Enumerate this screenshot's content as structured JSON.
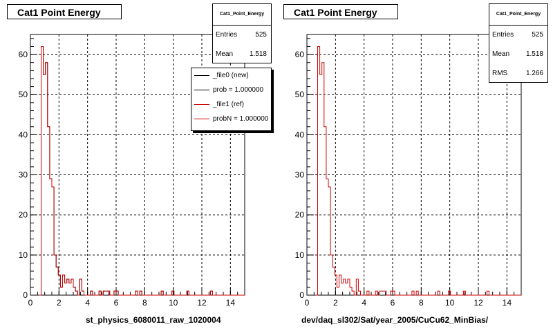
{
  "chart_data": [
    {
      "type": "histogram",
      "title": "Cat1 Point Energy",
      "xlabel": "st_physics_6080011_raw_1020004",
      "xlim": [
        0,
        15
      ],
      "ylim": [
        0,
        65
      ],
      "xticks": [
        "0",
        "2",
        "4",
        "6",
        "8",
        "10",
        "12",
        "14"
      ],
      "yticks": [
        "0",
        "10",
        "20",
        "30",
        "40",
        "50",
        "60"
      ],
      "grid": true,
      "bin_width": 0.15,
      "bin_start": 0.6,
      "series": [
        {
          "name": "_file0 (new)",
          "color": "#000000",
          "values": [
            0,
            62,
            55,
            58,
            42,
            29,
            27,
            10,
            7,
            5,
            2,
            5,
            3,
            4,
            3,
            4,
            2,
            1,
            0,
            4,
            1,
            0,
            0,
            0,
            1,
            0,
            0,
            0,
            1,
            0,
            1,
            1,
            1,
            0,
            0,
            1,
            1,
            0,
            0,
            0,
            0,
            0,
            0,
            0,
            0,
            1,
            0,
            1,
            0,
            0,
            0,
            0,
            0,
            0,
            0,
            0,
            0,
            1,
            0,
            0,
            0,
            0,
            1,
            0,
            0,
            0,
            0,
            0,
            0,
            1,
            0,
            0,
            0,
            0,
            0,
            0,
            0,
            0,
            0,
            0,
            1,
            0,
            0,
            0,
            0,
            0,
            0,
            0,
            0,
            0,
            0,
            0,
            0,
            0,
            0,
            0
          ]
        },
        {
          "name": "_file1 (ref)",
          "color": "#cc0000",
          "values": [
            0,
            62,
            55,
            58,
            42,
            29,
            27,
            10,
            7,
            5,
            2,
            5,
            3,
            4,
            3,
            4,
            2,
            1,
            0,
            4,
            1,
            0,
            0,
            0,
            1,
            0,
            0,
            0,
            1,
            0,
            1,
            1,
            1,
            0,
            0,
            1,
            1,
            0,
            0,
            0,
            0,
            0,
            0,
            0,
            0,
            1,
            0,
            1,
            0,
            0,
            0,
            0,
            0,
            0,
            0,
            0,
            0,
            1,
            0,
            0,
            0,
            0,
            1,
            0,
            0,
            0,
            0,
            0,
            0,
            1,
            0,
            0,
            0,
            0,
            0,
            0,
            0,
            0,
            0,
            0,
            1,
            0,
            0,
            0,
            0,
            0,
            0,
            0,
            0,
            0,
            0,
            0,
            0,
            0,
            0,
            0
          ]
        }
      ]
    },
    {
      "type": "histogram",
      "title": "Cat1 Point Energy",
      "xlabel": "dev/daq_sl302/Sat/year_2005/CuCu62_MinBias/",
      "xlim": [
        0,
        15
      ],
      "ylim": [
        0,
        65
      ],
      "xticks": [
        "0",
        "2",
        "4",
        "6",
        "8",
        "10",
        "12",
        "14"
      ],
      "yticks": [
        "0",
        "10",
        "20",
        "30",
        "40",
        "50",
        "60"
      ],
      "grid": true,
      "bin_width": 0.15,
      "bin_start": 0.6,
      "series": [
        {
          "name": "",
          "color": "#cc0000",
          "values": [
            0,
            62,
            55,
            58,
            42,
            29,
            27,
            10,
            7,
            5,
            2,
            5,
            3,
            4,
            3,
            4,
            2,
            1,
            0,
            4,
            1,
            0,
            0,
            0,
            1,
            0,
            0,
            0,
            1,
            0,
            1,
            1,
            1,
            0,
            0,
            1,
            1,
            0,
            0,
            0,
            0,
            0,
            0,
            0,
            0,
            1,
            0,
            1,
            0,
            0,
            0,
            0,
            0,
            0,
            0,
            0,
            0,
            1,
            0,
            0,
            0,
            0,
            1,
            0,
            0,
            0,
            0,
            0,
            0,
            1,
            0,
            0,
            0,
            0,
            0,
            0,
            0,
            0,
            0,
            0,
            1,
            0,
            0,
            0,
            0,
            0,
            0,
            0,
            0,
            0,
            0,
            0,
            0,
            0,
            0,
            0
          ]
        }
      ]
    }
  ],
  "left": {
    "title": "Cat1 Point Energy",
    "stats": {
      "name": "Cat1_Point_Energy",
      "rows": [
        {
          "label": "Entries",
          "value": "525"
        },
        {
          "label": "Mean",
          "value": "1.518"
        }
      ]
    },
    "legend": [
      {
        "label": "_file0 (new)",
        "color": "#000000"
      },
      {
        "label": "prob = 1.000000",
        "color": "#000000"
      },
      {
        "label": "_file1 (ref)",
        "color": "#cc0000"
      },
      {
        "label": "probN = 1.000000",
        "color": "#cc0000"
      }
    ],
    "xlabel": "st_physics_6080011_raw_1020004"
  },
  "right": {
    "title": "Cat1 Point Energy",
    "stats": {
      "name": "Cat1_Point_Energy",
      "rows": [
        {
          "label": "Entries",
          "value": "525"
        },
        {
          "label": "Mean",
          "value": "1.518"
        },
        {
          "label": "RMS",
          "value": "1.266"
        }
      ]
    },
    "xlabel": "dev/daq_sl302/Sat/year_2005/CuCu62_MinBias/"
  }
}
